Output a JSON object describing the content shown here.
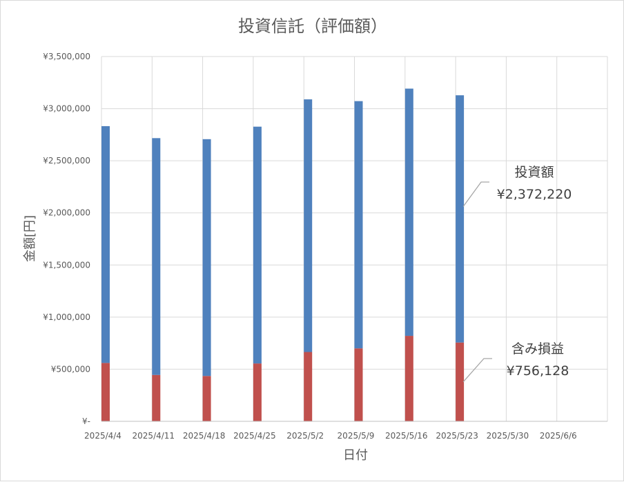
{
  "chart_data": {
    "type": "bar",
    "stacked": true,
    "title": "投資信託（評価額）",
    "xlabel": "日付",
    "ylabel": "金額[円]",
    "ylim": [
      0,
      3500000
    ],
    "ytick_values": [
      0,
      500000,
      1000000,
      1500000,
      2000000,
      2500000,
      3000000,
      3500000
    ],
    "ytick_labels": [
      "¥-",
      "¥500,000",
      "¥1,000,000",
      "¥1,500,000",
      "¥2,000,000",
      "¥2,500,000",
      "¥3,000,000",
      "¥3,500,000"
    ],
    "categories": [
      "2025/4/4",
      "2025/4/11",
      "2025/4/18",
      "2025/4/25",
      "2025/5/2",
      "2025/5/9",
      "2025/5/16",
      "2025/5/23",
      "2025/5/30",
      "2025/6/6"
    ],
    "grid": true,
    "series": [
      {
        "name": "含み損益",
        "color": "#c0504d",
        "values": [
          560000,
          445000,
          435000,
          555000,
          665000,
          700000,
          820000,
          756128,
          null,
          null
        ]
      },
      {
        "name": "投資額",
        "color": "#4f81bd",
        "values": [
          2272220,
          2272220,
          2272220,
          2272220,
          2424220,
          2372220,
          2372220,
          2372220,
          null,
          null
        ]
      }
    ],
    "annotations": [
      {
        "series": "投資額",
        "label": "投資額",
        "value_text": "¥2,372,220"
      },
      {
        "series": "含み損益",
        "label": "含み損益",
        "value_text": "¥756,128"
      }
    ]
  }
}
